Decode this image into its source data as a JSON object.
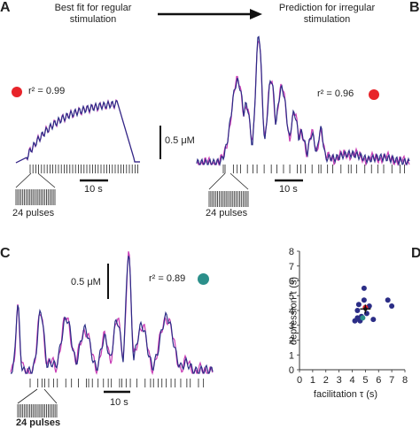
{
  "panels": {
    "a": "A",
    "b": "B",
    "c": "C",
    "d": "D"
  },
  "header": {
    "left": "Best fit for regular stimulation",
    "right": "Prediction for irregular stimulation"
  },
  "fits": {
    "a": {
      "r2": "r² = 0.99",
      "color": "#e8242a"
    },
    "b": {
      "r2": "r² = 0.96",
      "color": "#e8242a"
    },
    "c": {
      "r2": "r² = 0.89",
      "color": "#2b8f8a"
    }
  },
  "scale": {
    "conc_ab": "0.5 μM",
    "conc_c": "0.5 μM",
    "time_a": "10 s",
    "time_b": "10 s",
    "time_c": "10 s"
  },
  "pulses": {
    "a": "24 pulses",
    "b": "24 pulses",
    "c": "24 pulses"
  },
  "trace_colors": {
    "measured": "#c83ab4",
    "model": "#2b2d86"
  },
  "chart_data": {
    "type": "scatter",
    "xlabel": "facilitation τ (s)",
    "ylabel": "depression τ (s)",
    "xlim": [
      0,
      8
    ],
    "ylim": [
      0,
      8
    ],
    "xticks": [
      "0",
      "1",
      "2",
      "3",
      "4",
      "5",
      "6",
      "7",
      "8"
    ],
    "yticks": [
      "0",
      "1",
      "2",
      "3",
      "4",
      "5",
      "6",
      "7",
      "8"
    ],
    "grid": false,
    "points": [
      {
        "x": 4.2,
        "y": 3.3,
        "color": "#2b2d86"
      },
      {
        "x": 4.4,
        "y": 4.0,
        "color": "#2b2d86"
      },
      {
        "x": 4.4,
        "y": 3.5,
        "color": "#2b2d86"
      },
      {
        "x": 4.5,
        "y": 4.4,
        "color": "#2b2d86"
      },
      {
        "x": 4.6,
        "y": 3.3,
        "color": "#2b2d86"
      },
      {
        "x": 4.7,
        "y": 3.6,
        "color": "#2b2d86"
      },
      {
        "x": 4.9,
        "y": 5.5,
        "color": "#2b2d86"
      },
      {
        "x": 4.9,
        "y": 4.7,
        "color": "#2b2d86"
      },
      {
        "x": 5.1,
        "y": 3.8,
        "color": "#2b2d86"
      },
      {
        "x": 5.3,
        "y": 4.3,
        "color": "#2b2d86"
      },
      {
        "x": 5.6,
        "y": 3.4,
        "color": "#2b2d86"
      },
      {
        "x": 6.7,
        "y": 4.7,
        "color": "#2b2d86"
      },
      {
        "x": 7.0,
        "y": 4.3,
        "color": "#2b2d86"
      },
      {
        "x": 4.8,
        "y": 3.5,
        "color": "#2b8f8a"
      },
      {
        "x": 5.0,
        "y": 4.2,
        "color": "#e8242a"
      }
    ],
    "mean": {
      "x": 5.0,
      "y": 4.1,
      "xerr": 0.4,
      "yerr": 0.3
    }
  }
}
